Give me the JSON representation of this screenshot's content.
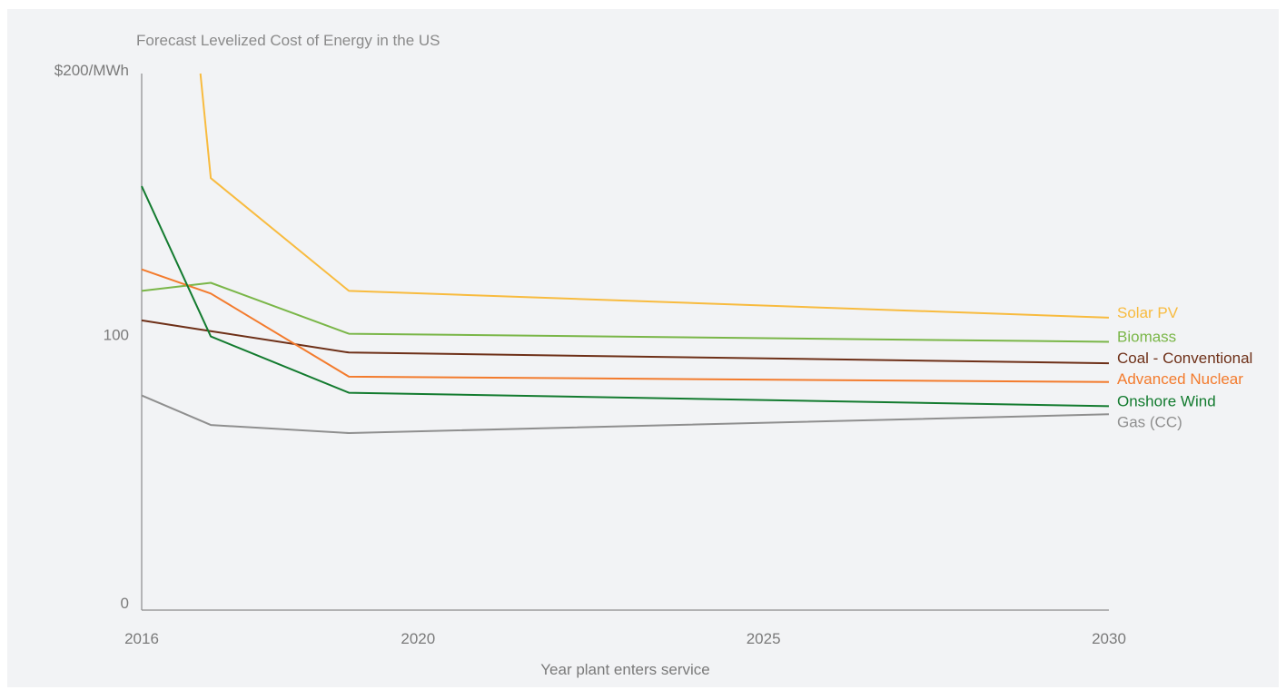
{
  "chart_data": {
    "type": "line",
    "title": "Forecast Levelized Cost of Energy in the US",
    "xlabel": "Year plant enters service",
    "ylabel": "",
    "xlim": [
      2016,
      2030
    ],
    "ylim": [
      0,
      200
    ],
    "x_ticks": [
      "2016",
      "2020",
      "2025",
      "2030"
    ],
    "x_tick_values": [
      2016,
      2020,
      2025,
      2030
    ],
    "y_ticks": [
      "0",
      "100",
      "$200/MWh"
    ],
    "y_tick_values": [
      0,
      100,
      200
    ],
    "grid": false,
    "legend": "direct labels at right end of lines",
    "series": [
      {
        "name": "Solar PV",
        "color": "#f8bb3f",
        "x": [
          2016.85,
          2017,
          2019,
          2030
        ],
        "y": [
          200,
          161,
          119,
          109
        ]
      },
      {
        "name": "Biomass",
        "color": "#7ab648",
        "x": [
          2016,
          2017,
          2019,
          2030
        ],
        "y": [
          119,
          122,
          103,
          100
        ]
      },
      {
        "name": "Coal - Conventional",
        "color": "#6e3018",
        "x": [
          2016,
          2017,
          2019,
          2030
        ],
        "y": [
          108,
          104,
          96,
          92
        ]
      },
      {
        "name": "Advanced Nuclear",
        "color": "#f37b2d",
        "x": [
          2016,
          2017,
          2019,
          2030
        ],
        "y": [
          127,
          118,
          87,
          85
        ]
      },
      {
        "name": "Onshore Wind",
        "color": "#137b2f",
        "x": [
          2016,
          2017,
          2019,
          2030
        ],
        "y": [
          158,
          102,
          81,
          76
        ]
      },
      {
        "name": "Gas (CC)",
        "color": "#8f8f8f",
        "x": [
          2016,
          2017,
          2019,
          2030
        ],
        "y": [
          80,
          69,
          66,
          73
        ]
      }
    ]
  }
}
